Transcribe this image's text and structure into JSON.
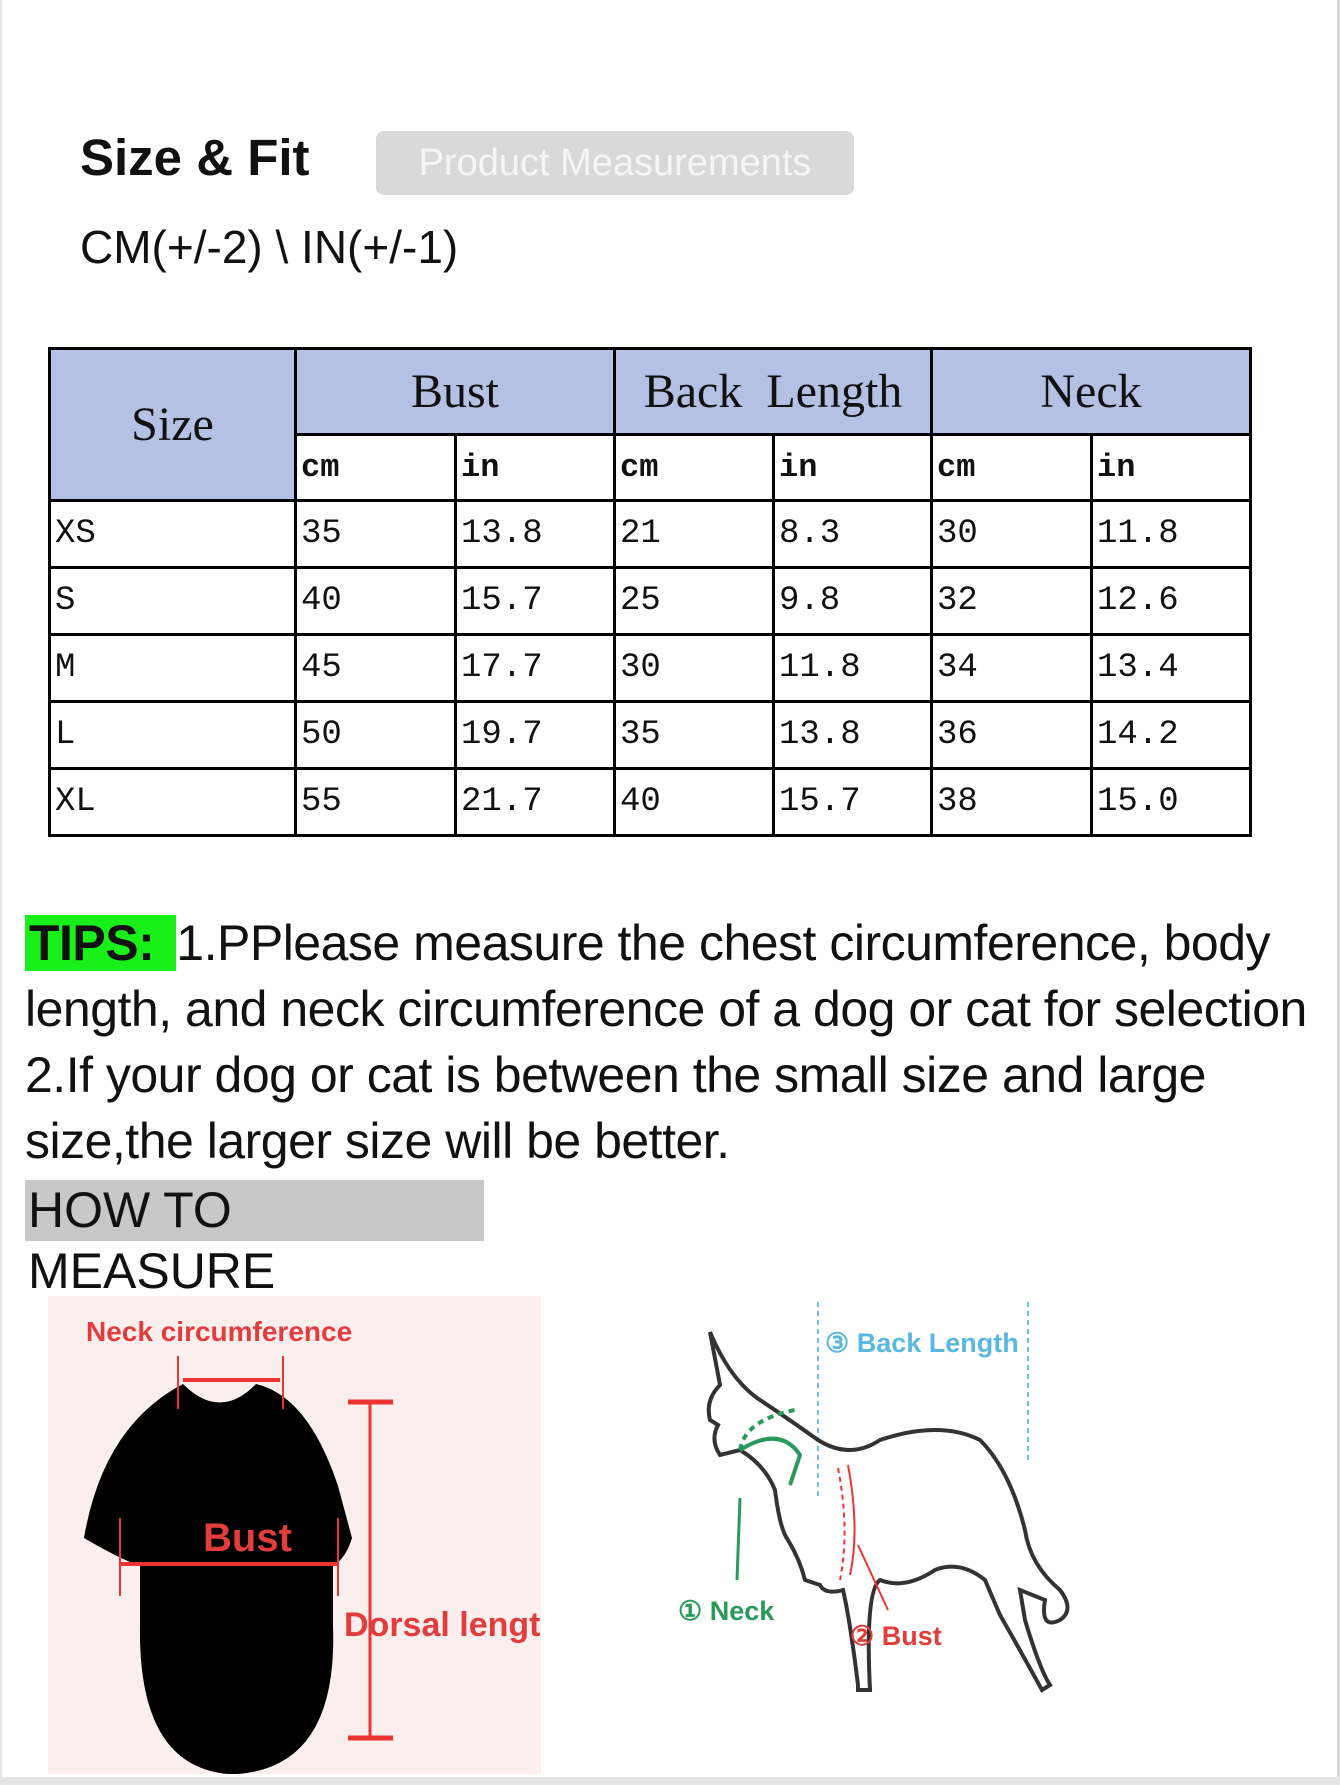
{
  "header": {
    "title": "Size & Fit",
    "badge": "Product Measurements",
    "tolerance": "CM(+/-2) \\ IN(+/-1)"
  },
  "table": {
    "size_header": "Size",
    "groups": [
      "Bust",
      "Back  Length",
      "Neck"
    ],
    "units": [
      "cm",
      "in",
      "cm",
      "in",
      "cm",
      "in"
    ],
    "rows": [
      [
        "XS",
        "35",
        "13.8",
        "21",
        "8.3",
        "30",
        "11.8"
      ],
      [
        "S",
        "40",
        "15.7",
        "25",
        "9.8",
        "32",
        "12.6"
      ],
      [
        "M",
        "45",
        "17.7",
        "30",
        "11.8",
        "34",
        "13.4"
      ],
      [
        "L",
        "50",
        "19.7",
        "35",
        "13.8",
        "36",
        "14.2"
      ],
      [
        "XL",
        "55",
        "21.7",
        "40",
        "15.7",
        "38",
        "15.0"
      ]
    ],
    "header_color": "#b4c0e4"
  },
  "tips": {
    "label": "TIPS:",
    "text": "1.PPlease measure the chest circumference, body length, and neck circumference of a dog or cat for selection 2.If your dog or cat is between the small size and large size,the larger size will be better.",
    "label_color": "#19f019"
  },
  "how_to_measure": "HOW TO MEASURE",
  "shirt_diagram": {
    "neck": "Neck circumference",
    "bust": "Bust",
    "dorsal": "Dorsal length"
  },
  "dog_diagram": {
    "back": "③ Back Length",
    "neck": "① Neck",
    "bust": "② Bust"
  }
}
